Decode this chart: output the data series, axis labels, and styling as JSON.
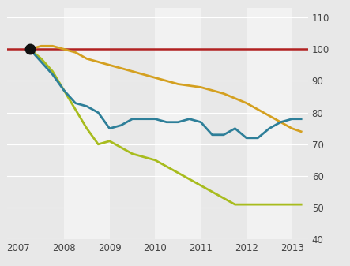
{
  "xlim": [
    2006.75,
    2013.35
  ],
  "ylim": [
    40,
    113
  ],
  "yticks": [
    40,
    50,
    60,
    70,
    80,
    90,
    100,
    110
  ],
  "xticks": [
    2007,
    2008,
    2009,
    2010,
    2011,
    2012,
    2013
  ],
  "reference_line_y": 100,
  "reference_color": "#b22222",
  "bg_light": "#e8e8e8",
  "bg_white": "#f2f2f2",
  "stripe_pairs": [
    [
      2006.75,
      2008,
      "#e8e8e8"
    ],
    [
      2008,
      2009,
      "#f2f2f2"
    ],
    [
      2009,
      2010,
      "#e8e8e8"
    ],
    [
      2010,
      2011,
      "#f2f2f2"
    ],
    [
      2011,
      2012,
      "#e8e8e8"
    ],
    [
      2012,
      2013,
      "#f2f2f2"
    ],
    [
      2013,
      2013.35,
      "#e8e8e8"
    ]
  ],
  "dot_x": 2007.25,
  "dot_y": 100,
  "dot_color": "#111111",
  "lines": {
    "eeuu": {
      "color": "#2e7f99",
      "x": [
        2007.25,
        2007.5,
        2007.75,
        2008.0,
        2008.25,
        2008.5,
        2008.75,
        2009.0,
        2009.25,
        2009.5,
        2009.75,
        2010.0,
        2010.25,
        2010.5,
        2010.75,
        2011.0,
        2011.25,
        2011.5,
        2011.75,
        2012.0,
        2012.25,
        2012.5,
        2012.75,
        2013.0,
        2013.2
      ],
      "y": [
        100,
        96,
        92,
        87,
        83,
        82,
        80,
        75,
        76,
        78,
        78,
        78,
        77,
        77,
        78,
        77,
        73,
        73,
        75,
        72,
        72,
        75,
        77,
        78,
        78
      ]
    },
    "espana": {
      "color": "#d4a020",
      "x": [
        2007.25,
        2007.5,
        2007.75,
        2008.0,
        2008.25,
        2008.5,
        2008.75,
        2009.0,
        2009.5,
        2010.0,
        2010.5,
        2011.0,
        2011.5,
        2012.0,
        2012.5,
        2013.0,
        2013.2
      ],
      "y": [
        100,
        101,
        101,
        100,
        99,
        97,
        96,
        95,
        93,
        91,
        89,
        88,
        86,
        83,
        79,
        75,
        74
      ]
    },
    "irlanda": {
      "color": "#a8bc1e",
      "x": [
        2007.25,
        2007.5,
        2007.75,
        2008.0,
        2008.25,
        2008.5,
        2008.75,
        2009.0,
        2009.25,
        2009.5,
        2009.75,
        2010.0,
        2010.25,
        2010.5,
        2010.75,
        2011.0,
        2011.25,
        2011.5,
        2011.75,
        2012.0,
        2012.25,
        2012.5,
        2012.75,
        2013.0,
        2013.2
      ],
      "y": [
        100,
        97,
        93,
        87,
        81,
        75,
        70,
        71,
        69,
        67,
        66,
        65,
        63,
        61,
        59,
        57,
        55,
        53,
        51,
        51,
        51,
        51,
        51,
        51,
        51
      ]
    }
  }
}
